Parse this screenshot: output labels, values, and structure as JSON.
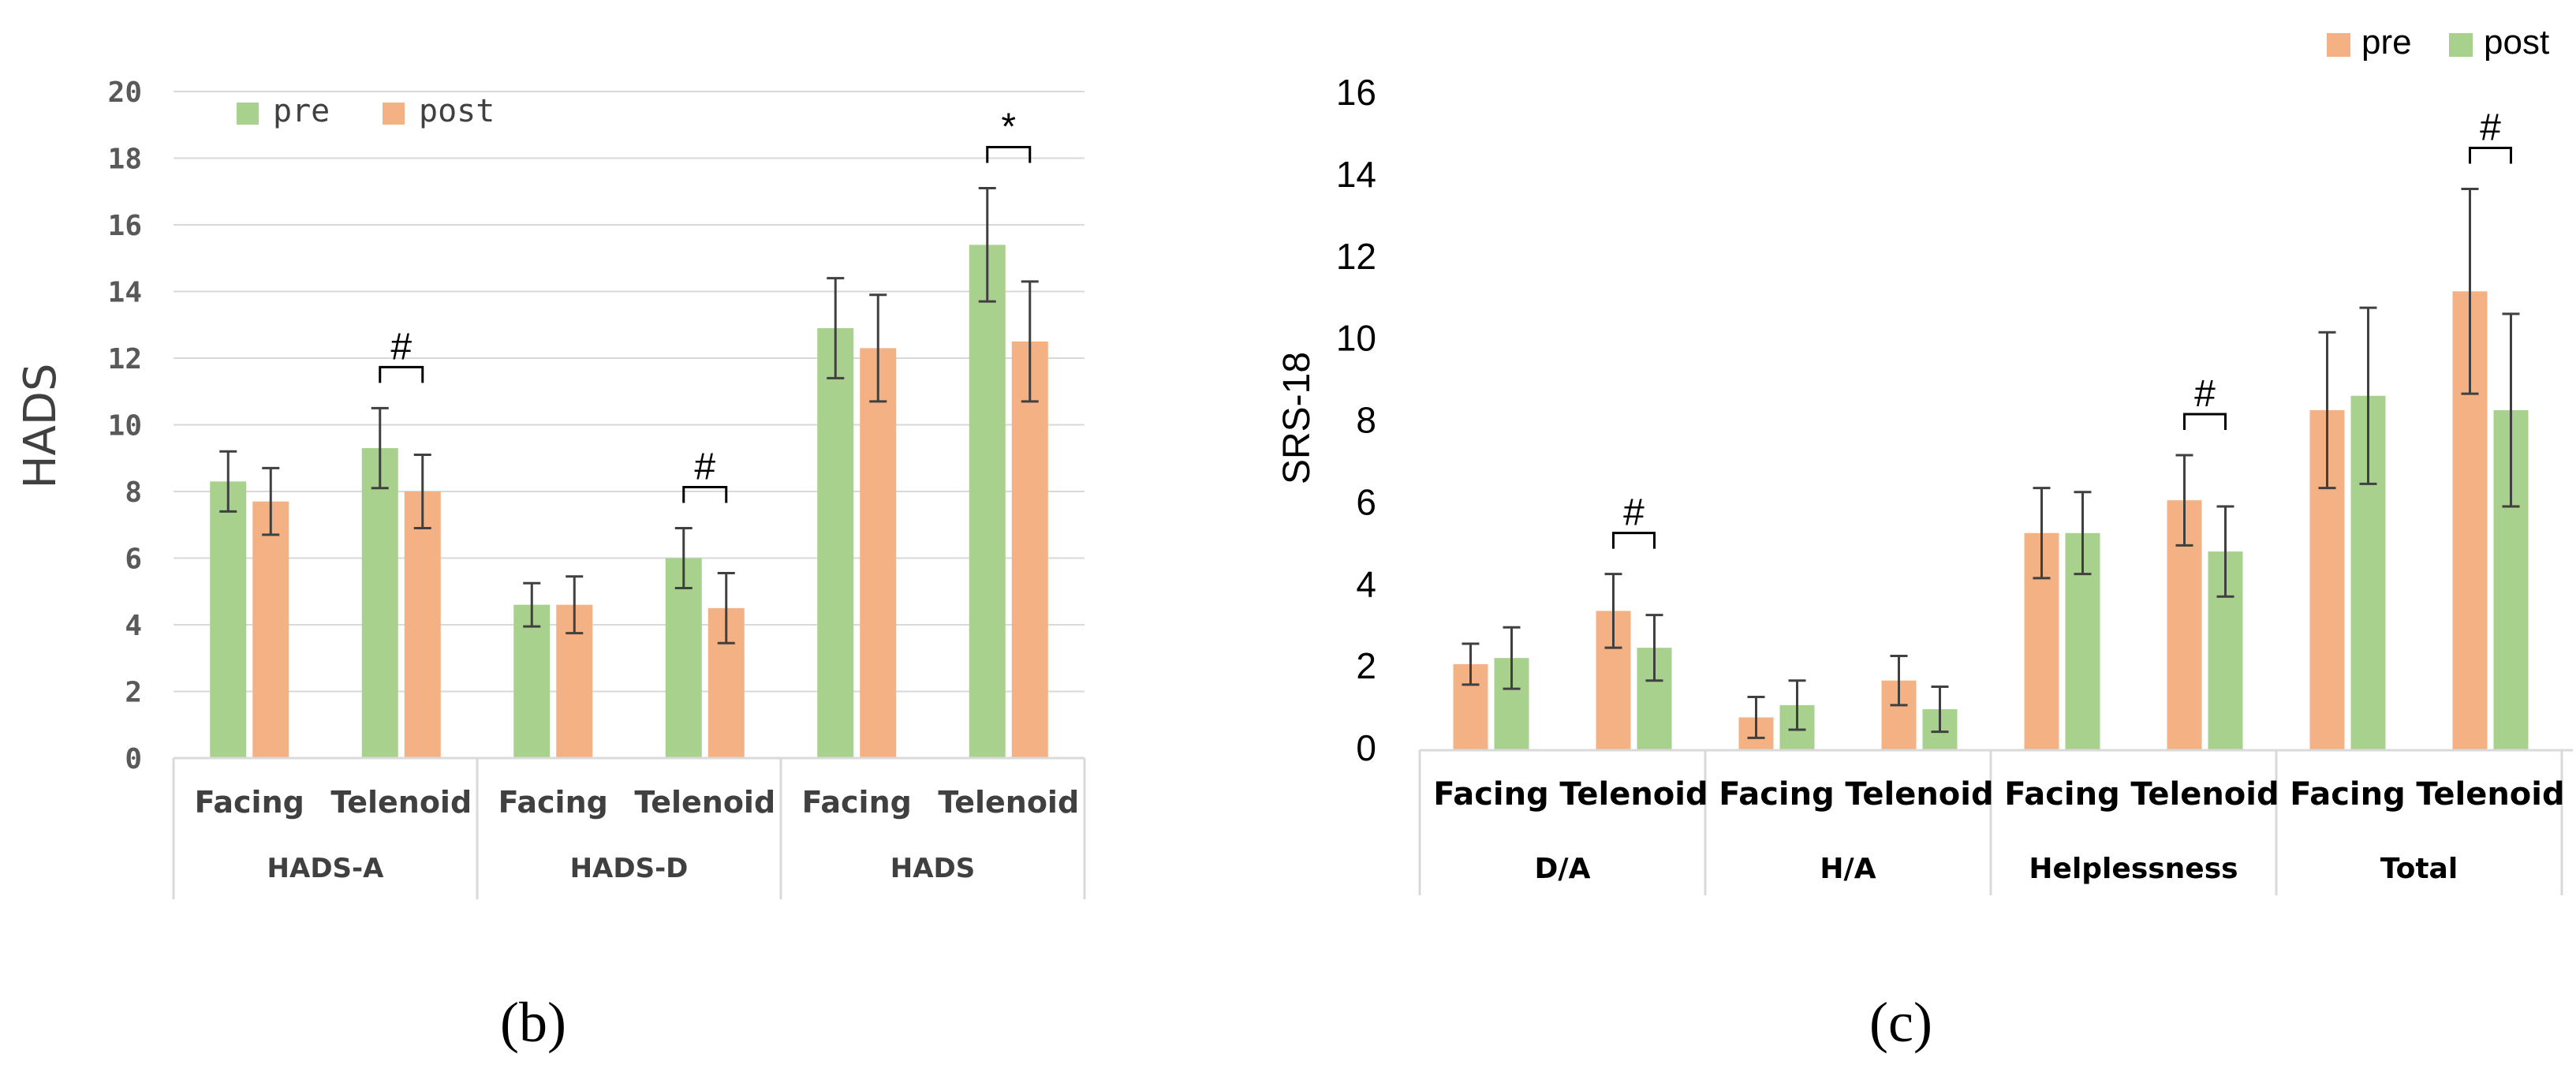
{
  "colors": {
    "green": "#a9d18e",
    "orange": "#f4b183",
    "errbar": "#404040",
    "grid": "#d9d9d9"
  },
  "chart_data": [
    {
      "type": "bar",
      "panel_label": "(b)",
      "ylabel": "HADS",
      "ylim": [
        0,
        20
      ],
      "yticks": [
        "0",
        "2",
        "4",
        "6",
        "8",
        "10",
        "12",
        "14",
        "16",
        "18",
        "20"
      ],
      "legend": [
        "pre",
        "post"
      ],
      "groups": [
        "HADS-A",
        "HADS-D",
        "HADS"
      ],
      "categories": [
        "Facing",
        "Telenoid",
        "Facing",
        "Telenoid",
        "Facing",
        "Telenoid"
      ],
      "series": [
        {
          "name": "pre",
          "color": "#a9d18e",
          "values": [
            8.3,
            9.3,
            4.6,
            6.0,
            12.9,
            15.4
          ],
          "errors": [
            0.9,
            1.2,
            0.65,
            0.9,
            1.5,
            1.7
          ]
        },
        {
          "name": "post",
          "color": "#f4b183",
          "values": [
            7.7,
            8.0,
            4.6,
            4.5,
            12.3,
            12.5
          ],
          "errors": [
            1.0,
            1.1,
            0.85,
            1.05,
            1.6,
            1.8
          ]
        }
      ],
      "significance": [
        {
          "category_index": 1,
          "label": "#"
        },
        {
          "category_index": 3,
          "label": "#"
        },
        {
          "category_index": 5,
          "label": "*"
        }
      ]
    },
    {
      "type": "bar",
      "panel_label": "(c)",
      "ylabel": "SRS-18",
      "ylim": [
        0,
        16
      ],
      "yticks": [
        "0",
        "2",
        "4",
        "6",
        "8",
        "10",
        "12",
        "14",
        "16"
      ],
      "legend": [
        "pre",
        "post"
      ],
      "groups": [
        "D/A",
        "H/A",
        "Helplessness",
        "Total"
      ],
      "categories": [
        "Facing",
        "Telenoid",
        "Facing",
        "Telenoid",
        "Facing",
        "Telenoid",
        "Facing",
        "Telenoid"
      ],
      "series": [
        {
          "name": "pre",
          "color": "#f4b183",
          "values": [
            2.1,
            3.4,
            0.8,
            1.7,
            5.3,
            6.1,
            8.3,
            11.2
          ],
          "errors": [
            0.5,
            0.9,
            0.5,
            0.6,
            1.1,
            1.1,
            1.9,
            2.5
          ]
        },
        {
          "name": "post",
          "color": "#a9d18e",
          "values": [
            2.25,
            2.5,
            1.1,
            1.0,
            5.3,
            4.85,
            8.65,
            8.3
          ],
          "errors": [
            0.75,
            0.8,
            0.6,
            0.55,
            1.0,
            1.1,
            2.15,
            2.35
          ]
        }
      ],
      "significance": [
        {
          "category_index": 1,
          "label": "#"
        },
        {
          "category_index": 5,
          "label": "#"
        },
        {
          "category_index": 7,
          "label": "#"
        }
      ]
    }
  ]
}
